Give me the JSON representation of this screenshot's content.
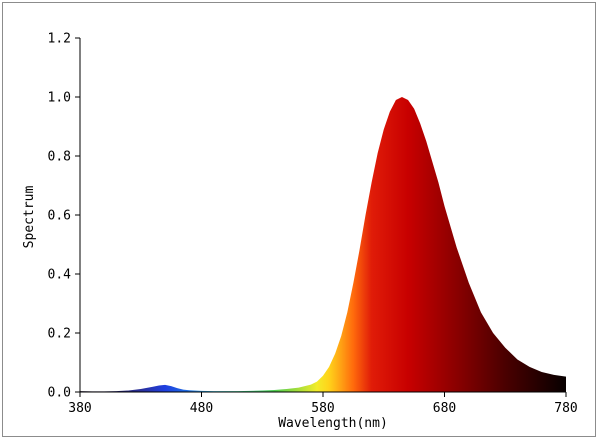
{
  "chart_data": {
    "type": "area",
    "title": "",
    "xlabel": "Wavelength(nm)",
    "ylabel": "Spectrum",
    "xlim": [
      380,
      780
    ],
    "ylim": [
      0,
      1.2
    ],
    "xticks": [
      380,
      480,
      580,
      680,
      780
    ],
    "xtick_labels": [
      "380",
      "480",
      "580",
      "680",
      "780"
    ],
    "yticks": [
      0,
      0.2,
      0.4,
      0.6,
      0.8,
      1.0,
      1.2
    ],
    "ytick_labels": [
      "0.0",
      "0.2",
      "0.4",
      "0.6",
      "0.8",
      "1.0",
      "1.2"
    ],
    "grid": false,
    "fill": "spectral colors by wavelength",
    "series": [
      {
        "x": [
          380,
          390,
          400,
          410,
          420,
          430,
          440,
          445,
          450,
          455,
          460,
          465,
          470,
          480,
          490,
          500,
          510,
          520,
          530,
          540,
          550,
          560,
          570,
          575,
          580,
          585,
          590,
          595,
          600,
          605,
          610,
          615,
          620,
          625,
          630,
          635,
          640,
          645,
          650,
          655,
          660,
          665,
          670,
          675,
          680,
          690,
          700,
          710,
          720,
          730,
          740,
          750,
          760,
          770,
          780
        ],
        "y": [
          0.003,
          0.002,
          0.002,
          0.003,
          0.005,
          0.01,
          0.018,
          0.022,
          0.024,
          0.02,
          0.013,
          0.008,
          0.006,
          0.004,
          0.003,
          0.003,
          0.003,
          0.004,
          0.005,
          0.007,
          0.01,
          0.015,
          0.025,
          0.035,
          0.055,
          0.085,
          0.13,
          0.19,
          0.27,
          0.37,
          0.48,
          0.6,
          0.71,
          0.81,
          0.89,
          0.95,
          0.99,
          1.0,
          0.99,
          0.96,
          0.91,
          0.85,
          0.78,
          0.71,
          0.63,
          0.49,
          0.37,
          0.27,
          0.2,
          0.15,
          0.11,
          0.085,
          0.068,
          0.058,
          0.052
        ]
      }
    ]
  }
}
